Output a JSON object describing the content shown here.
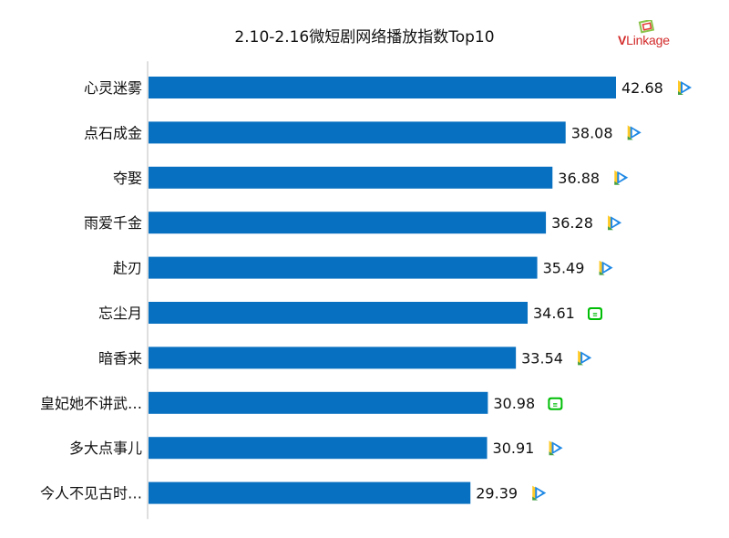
{
  "chart_data": {
    "type": "bar",
    "orientation": "horizontal",
    "title": "2.10-2.16微短剧网络播放指数Top10",
    "categories": [
      "心灵迷雾",
      "点石成金",
      "夺娶",
      "雨爱千金",
      "赴刃",
      "忘尘月",
      "暗香来",
      "皇妃她不讲武…",
      "多大点事儿",
      "今人不见古时…"
    ],
    "values": [
      42.68,
      38.08,
      36.88,
      36.28,
      35.49,
      34.61,
      33.54,
      30.98,
      30.91,
      29.39
    ],
    "value_labels": [
      "42.68",
      "38.08",
      "36.88",
      "36.28",
      "35.49",
      "34.61",
      "33.54",
      "30.98",
      "30.91",
      "29.39"
    ],
    "platforms": [
      "tencent-video-icon",
      "tencent-video-icon",
      "tencent-video-icon",
      "tencent-video-icon",
      "tencent-video-icon",
      "iqiyi-icon",
      "tencent-video-icon",
      "iqiyi-icon",
      "tencent-video-icon",
      "tencent-video-icon"
    ],
    "bar_color": "#0870c0",
    "xlim": [
      0,
      45
    ],
    "grid": false,
    "legend": false
  },
  "logo": {
    "brand_v": "V",
    "brand_rest": "Linkage"
  },
  "colors": {
    "tencent_blue": "#1e88e5",
    "tencent_yellow": "#ffca28",
    "tencent_green": "#43a047",
    "iqiyi_green": "#00be06"
  }
}
